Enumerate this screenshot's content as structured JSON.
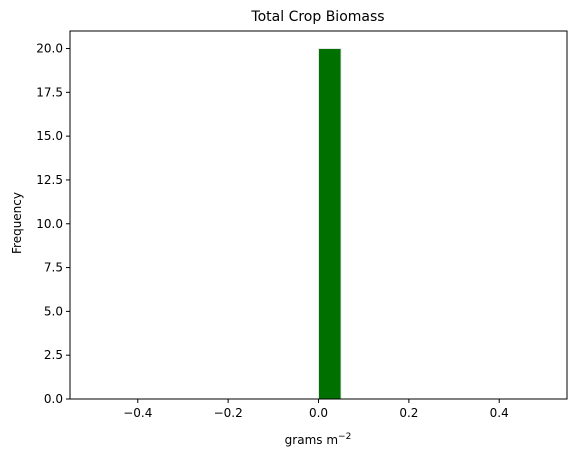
{
  "chart_data": {
    "type": "bar",
    "title": "Total Crop Biomass",
    "xlabel": "grams m",
    "xlabel_exponent": "−2",
    "ylabel": "Frequency",
    "xlim": [
      -0.55,
      0.55
    ],
    "ylim": [
      0,
      21
    ],
    "xticks": [
      -0.4,
      -0.2,
      0.0,
      0.2,
      0.4
    ],
    "xtick_labels": [
      "−0.4",
      "−0.2",
      "0.0",
      "0.2",
      "0.4"
    ],
    "yticks": [
      0,
      2.5,
      5,
      7.5,
      10,
      12.5,
      15,
      17.5,
      20
    ],
    "ytick_labels": [
      "0.0",
      "2.5",
      "5.0",
      "7.5",
      "10.0",
      "12.5",
      "15.0",
      "17.5",
      "20.0"
    ],
    "bins": [
      {
        "x0": 0.0,
        "x1": 0.05,
        "value": 20
      }
    ],
    "bar_color": "#007000",
    "bar_edge_color": "#e6e6e6",
    "grid": false,
    "legend": false
  }
}
